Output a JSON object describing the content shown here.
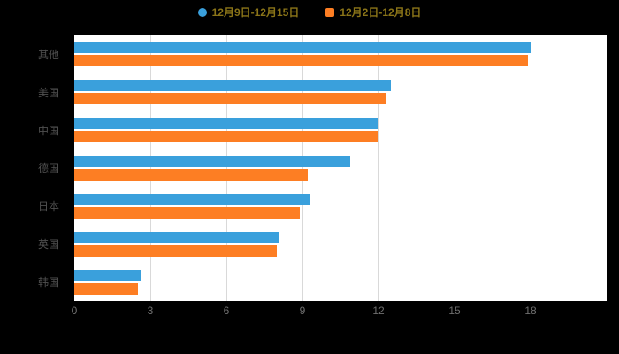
{
  "legend": {
    "items": [
      {
        "label": "12月9日-12月15日",
        "shape": "circle",
        "color": "#3aa0dc"
      },
      {
        "label": "12月2日-12月8日",
        "shape": "square",
        "color": "#fd7e23"
      }
    ]
  },
  "chart_data": {
    "type": "bar",
    "orientation": "horizontal",
    "title": "",
    "categories": [
      "其他",
      "美国",
      "中国",
      "德国",
      "日本",
      "英国",
      "韩国"
    ],
    "series": [
      {
        "name": "12月9日-12月15日",
        "color": "#3aa0dc",
        "values": [
          18.0,
          12.5,
          12.0,
          10.9,
          9.3,
          8.1,
          2.6
        ]
      },
      {
        "name": "12月2日-12月8日",
        "color": "#fd7e23",
        "values": [
          17.9,
          12.3,
          12.0,
          9.2,
          8.9,
          8.0,
          2.5
        ]
      }
    ],
    "xlim": [
      0,
      18
    ],
    "xticks": [
      0,
      3,
      6,
      9,
      12,
      15,
      18
    ],
    "grid": true,
    "legend_position": "top",
    "plot_background": "#ffffff",
    "page_background": "#000000"
  },
  "colors": {
    "series_1": "#3aa0dc",
    "series_2": "#fd7e23",
    "background": "#000000",
    "plot_background": "#ffffff",
    "legend_text": "#8a7418",
    "gridline": "#d9d9d9"
  }
}
